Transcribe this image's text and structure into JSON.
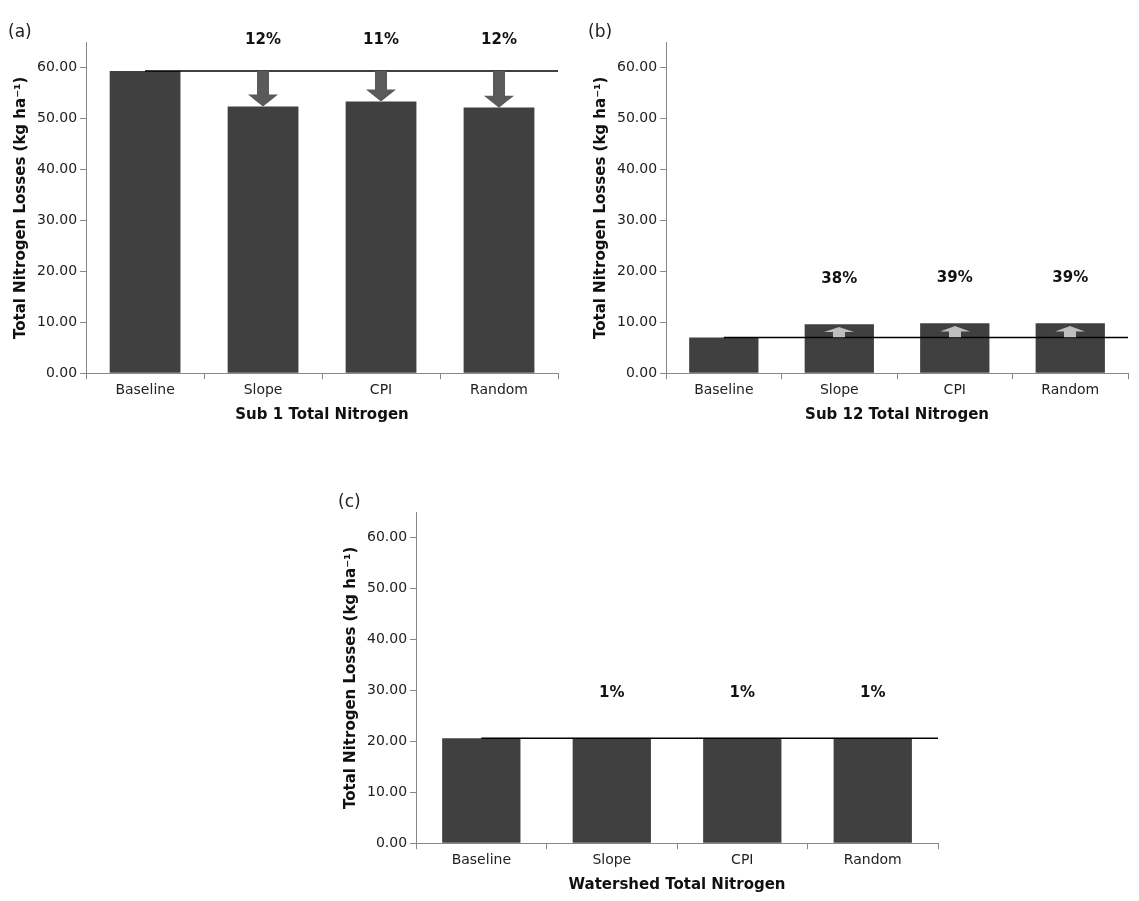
{
  "chart_data": [
    {
      "type": "bar",
      "title": "(a)",
      "xlabel": "Sub 1 Total Nitrogen",
      "ylabel": "Total Nitrogen Losses (kg ha⁻¹)",
      "categories": [
        "Baseline",
        "Slope",
        "CPI",
        "Random"
      ],
      "values": [
        59.4,
        52.4,
        53.4,
        52.2
      ],
      "color": "#404040",
      "ylim": [
        0,
        65
      ],
      "yticks": [
        {
          "value": 0,
          "label": "0.00"
        },
        {
          "value": 10,
          "label": "10.00"
        },
        {
          "value": 20,
          "label": "20.00"
        },
        {
          "value": 30,
          "label": "30.00"
        },
        {
          "value": 40,
          "label": "40.00"
        },
        {
          "value": 50,
          "label": "50.00"
        },
        {
          "value": 60,
          "label": "60.00"
        }
      ],
      "ref_lines": [
        {
          "axis": "y",
          "value": 59.4,
          "color": "#000000"
        }
      ],
      "annotations": [
        "12%",
        "11%",
        "12%"
      ]
    },
    {
      "type": "bar",
      "title": "(b)",
      "xlabel": "Sub 12 Total Nitrogen",
      "ylabel": "Total Nitrogen Losses (kg ha⁻¹)",
      "categories": [
        "Baseline",
        "Slope",
        "CPI",
        "Random"
      ],
      "values": [
        7.0,
        9.6,
        9.8,
        9.8
      ],
      "color": "#404040",
      "ylim": [
        0,
        65
      ],
      "yticks": [
        {
          "value": 0,
          "label": "0.00"
        },
        {
          "value": 10,
          "label": "10.00"
        },
        {
          "value": 20,
          "label": "20.00"
        },
        {
          "value": 30,
          "label": "30.00"
        },
        {
          "value": 40,
          "label": "40.00"
        },
        {
          "value": 50,
          "label": "50.00"
        },
        {
          "value": 60,
          "label": "60.00"
        }
      ],
      "ref_lines": [
        {
          "axis": "y",
          "value": 7.0,
          "color": "#000000"
        }
      ],
      "annotations": [
        "38%",
        "39%",
        "39%"
      ]
    },
    {
      "type": "bar",
      "title": "(c)",
      "xlabel": "Watershed Total Nitrogen",
      "ylabel": "Total Nitrogen Losses (kg ha⁻¹)",
      "categories": [
        "Baseline",
        "Slope",
        "CPI",
        "Random"
      ],
      "values": [
        20.6,
        20.6,
        20.6,
        20.6
      ],
      "color": "#404040",
      "ylim": [
        0,
        65
      ],
      "yticks": [
        {
          "value": 0,
          "label": "0.00"
        },
        {
          "value": 10,
          "label": "10.00"
        },
        {
          "value": 20,
          "label": "20.00"
        },
        {
          "value": 30,
          "label": "30.00"
        },
        {
          "value": 40,
          "label": "40.00"
        },
        {
          "value": 50,
          "label": "50.00"
        },
        {
          "value": 60,
          "label": "60.00"
        }
      ],
      "ref_lines": [
        {
          "axis": "y",
          "value": 20.6,
          "color": "#000000"
        }
      ],
      "annotations": [
        "1%",
        "1%",
        "1%"
      ]
    }
  ]
}
